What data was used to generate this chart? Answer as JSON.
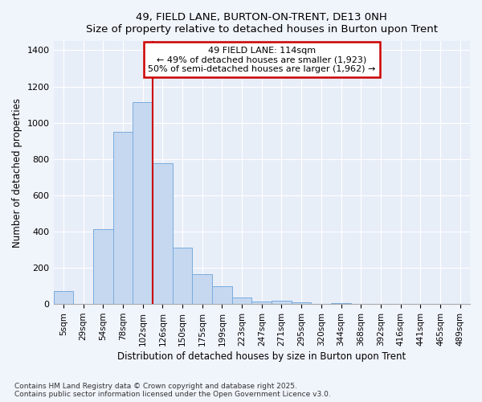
{
  "title": "49, FIELD LANE, BURTON-ON-TRENT, DE13 0NH",
  "subtitle": "Size of property relative to detached houses in Burton upon Trent",
  "xlabel": "Distribution of detached houses by size in Burton upon Trent",
  "ylabel": "Number of detached properties",
  "bar_color": "#c5d8f0",
  "bar_edge_color": "#7aabdc",
  "bg_color": "#f0f4fb",
  "grid_color": "#ffffff",
  "axes_bg_color": "#e8eef8",
  "categories": [
    "5sqm",
    "29sqm",
    "54sqm",
    "78sqm",
    "102sqm",
    "126sqm",
    "150sqm",
    "175sqm",
    "199sqm",
    "223sqm",
    "247sqm",
    "271sqm",
    "295sqm",
    "320sqm",
    "344sqm",
    "368sqm",
    "392sqm",
    "416sqm",
    "441sqm",
    "465sqm",
    "489sqm"
  ],
  "values": [
    70,
    0,
    415,
    950,
    1115,
    775,
    310,
    165,
    100,
    35,
    15,
    20,
    10,
    0,
    5,
    0,
    0,
    0,
    0,
    0,
    0
  ],
  "annotation_box_color": "#ffffff",
  "annotation_border_color": "#cc0000",
  "annotation_text_line1": "49 FIELD LANE: 114sqm",
  "annotation_text_line2": "← 49% of detached houses are smaller (1,923)",
  "annotation_text_line3": "50% of semi-detached houses are larger (1,962) →",
  "vline_index": 5,
  "vline_color": "#cc0000",
  "ylim": [
    0,
    1450
  ],
  "yticks": [
    0,
    200,
    400,
    600,
    800,
    1000,
    1200,
    1400
  ],
  "footnote1": "Contains HM Land Registry data © Crown copyright and database right 2025.",
  "footnote2": "Contains public sector information licensed under the Open Government Licence v3.0."
}
